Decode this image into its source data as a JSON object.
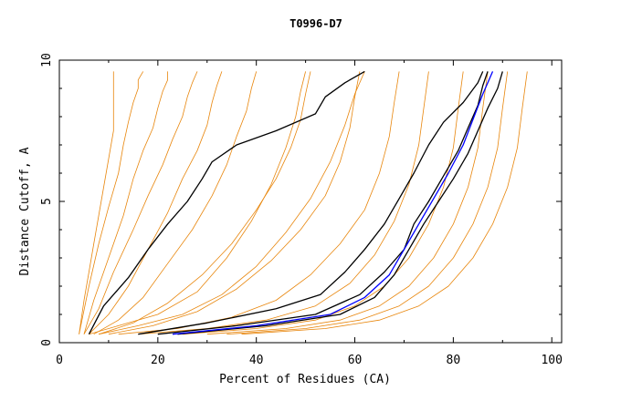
{
  "chart_data": {
    "type": "line",
    "title": "T0996-D7",
    "xlabel": "Percent of Residues (CA)",
    "ylabel": "Distance Cutoff, A",
    "xlim": [
      0,
      102
    ],
    "ylim": [
      0,
      10
    ],
    "x_ticks": [
      0,
      20,
      40,
      60,
      80,
      100
    ],
    "y_ticks": [
      0,
      5,
      10
    ],
    "grid": false,
    "legend": "none",
    "colors": {
      "background": "#ffffff",
      "orange": "#e8860c",
      "black": "#000000",
      "blue": "#0000ff"
    },
    "series": [
      {
        "color": "#e8860c",
        "x": [
          4,
          5,
          6,
          7,
          8,
          9,
          10,
          11,
          11,
          11,
          11
        ],
        "y": [
          0.3,
          1.5,
          2.5,
          3.5,
          4.5,
          5.5,
          6.5,
          7.5,
          8.5,
          9.2,
          9.6
        ]
      },
      {
        "color": "#e8860c",
        "x": [
          4,
          6,
          8,
          10,
          12,
          13,
          14,
          15,
          16,
          16,
          17
        ],
        "y": [
          0.3,
          2.0,
          3.5,
          4.8,
          6.0,
          7.0,
          7.8,
          8.5,
          9.0,
          9.3,
          9.6
        ]
      },
      {
        "color": "#e8860c",
        "x": [
          5,
          7,
          10,
          13,
          15,
          17,
          19,
          20,
          21,
          22,
          22
        ],
        "y": [
          0.3,
          1.5,
          3.0,
          4.5,
          5.8,
          6.8,
          7.6,
          8.3,
          8.9,
          9.3,
          9.6
        ]
      },
      {
        "color": "#e8860c",
        "x": [
          5,
          8,
          11,
          15,
          18,
          21,
          23,
          25,
          26,
          27,
          28
        ],
        "y": [
          0.3,
          1.2,
          2.5,
          4.0,
          5.2,
          6.3,
          7.2,
          8.0,
          8.7,
          9.2,
          9.6
        ]
      },
      {
        "color": "#e8860c",
        "x": [
          6,
          10,
          14,
          18,
          22,
          25,
          28,
          30,
          31,
          32,
          33
        ],
        "y": [
          0.3,
          1.0,
          2.0,
          3.3,
          4.6,
          5.8,
          6.8,
          7.7,
          8.5,
          9.1,
          9.6
        ]
      },
      {
        "color": "#e8860c",
        "x": [
          7,
          12,
          17,
          22,
          27,
          31,
          34,
          36,
          38,
          39,
          40
        ],
        "y": [
          0.3,
          0.8,
          1.6,
          2.8,
          4.0,
          5.2,
          6.3,
          7.3,
          8.2,
          9.0,
          9.6
        ]
      },
      {
        "color": "#e8860c",
        "x": [
          8,
          15,
          22,
          29,
          35,
          40,
          44,
          47,
          49,
          50,
          51
        ],
        "y": [
          0.3,
          0.7,
          1.4,
          2.4,
          3.5,
          4.7,
          5.8,
          6.9,
          7.9,
          8.8,
          9.6
        ]
      },
      {
        "color": "#e8860c",
        "x": [
          10,
          19,
          28,
          36,
          43,
          49,
          54,
          57,
          59,
          60,
          61
        ],
        "y": [
          0.3,
          0.6,
          1.1,
          1.9,
          2.9,
          4.0,
          5.2,
          6.4,
          7.6,
          8.7,
          9.6
        ]
      },
      {
        "color": "#e8860c",
        "x": [
          12,
          24,
          35,
          44,
          51,
          57,
          62,
          65,
          67,
          68,
          69
        ],
        "y": [
          0.3,
          0.5,
          0.9,
          1.5,
          2.4,
          3.5,
          4.7,
          6.0,
          7.3,
          8.5,
          9.6
        ]
      },
      {
        "color": "#e8860c",
        "x": [
          16,
          30,
          42,
          52,
          59,
          64,
          68,
          71,
          73,
          74,
          75
        ],
        "y": [
          0.3,
          0.5,
          0.8,
          1.3,
          2.1,
          3.1,
          4.3,
          5.6,
          7.0,
          8.3,
          9.6
        ]
      },
      {
        "color": "#e8860c",
        "x": [
          25,
          40,
          52,
          60,
          66,
          71,
          75,
          78,
          80,
          81,
          82
        ],
        "y": [
          0.3,
          0.5,
          0.8,
          1.3,
          2.0,
          3.0,
          4.2,
          5.5,
          6.9,
          8.3,
          9.6
        ]
      },
      {
        "color": "#e8860c",
        "x": [
          30,
          46,
          57,
          65,
          71,
          76,
          80,
          83,
          85,
          86,
          87
        ],
        "y": [
          0.3,
          0.5,
          0.8,
          1.3,
          2.0,
          3.0,
          4.2,
          5.5,
          6.9,
          8.3,
          9.6
        ]
      },
      {
        "color": "#e8860c",
        "x": [
          34,
          50,
          61,
          69,
          75,
          80,
          84,
          87,
          89,
          90,
          91
        ],
        "y": [
          0.3,
          0.5,
          0.8,
          1.3,
          2.0,
          3.0,
          4.2,
          5.5,
          6.9,
          8.3,
          9.6
        ]
      },
      {
        "color": "#e8860c",
        "x": [
          37,
          54,
          65,
          73,
          79,
          84,
          88,
          91,
          93,
          94,
          95
        ],
        "y": [
          0.3,
          0.5,
          0.8,
          1.3,
          2.0,
          3.0,
          4.2,
          5.5,
          6.9,
          8.3,
          9.6
        ]
      },
      {
        "color": "#e8860c",
        "x": [
          6,
          12,
          20,
          28,
          34,
          39,
          43,
          46,
          48,
          49,
          50
        ],
        "y": [
          0.3,
          0.6,
          1.0,
          1.8,
          3.0,
          4.3,
          5.6,
          6.9,
          8.0,
          8.9,
          9.6
        ]
      },
      {
        "color": "#e8860c",
        "x": [
          8,
          16,
          25,
          33,
          40,
          46,
          51,
          55,
          58,
          60,
          62
        ],
        "y": [
          0.3,
          0.6,
          1.0,
          1.7,
          2.7,
          3.9,
          5.1,
          6.4,
          7.7,
          8.8,
          9.6
        ]
      },
      {
        "color": "#000000",
        "x": [
          6,
          9,
          14,
          18,
          22,
          26,
          29,
          31,
          36,
          44,
          52,
          54,
          58,
          62
        ],
        "y": [
          0.3,
          1.3,
          2.3,
          3.3,
          4.2,
          5.0,
          5.8,
          6.4,
          7.0,
          7.5,
          8.1,
          8.7,
          9.2,
          9.6
        ]
      },
      {
        "color": "#000000",
        "x": [
          16,
          30,
          44,
          53,
          58,
          62,
          66,
          69,
          72,
          75,
          78,
          82,
          85,
          86
        ],
        "y": [
          0.3,
          0.7,
          1.2,
          1.7,
          2.5,
          3.3,
          4.2,
          5.1,
          6.0,
          7.0,
          7.8,
          8.5,
          9.2,
          9.6
        ]
      },
      {
        "color": "#000000",
        "x": [
          20,
          36,
          52,
          61,
          66,
          70,
          72,
          75,
          78,
          81,
          83,
          85,
          86,
          87
        ],
        "y": [
          0.3,
          0.6,
          1.0,
          1.7,
          2.5,
          3.3,
          4.2,
          5.0,
          5.9,
          6.8,
          7.6,
          8.4,
          9.1,
          9.6
        ]
      },
      {
        "color": "#000000",
        "x": [
          24,
          42,
          57,
          64,
          68,
          71,
          74,
          77,
          80,
          83,
          85,
          87,
          89,
          90
        ],
        "y": [
          0.3,
          0.6,
          1.0,
          1.6,
          2.4,
          3.3,
          4.2,
          5.0,
          5.8,
          6.7,
          7.5,
          8.3,
          9.0,
          9.6
        ]
      },
      {
        "color": "#0000ff",
        "x": [
          23,
          40,
          55,
          62,
          67,
          70,
          73,
          76,
          79,
          82,
          84,
          86,
          88
        ],
        "y": [
          0.3,
          0.6,
          1.0,
          1.6,
          2.4,
          3.3,
          4.2,
          5.1,
          6.0,
          7.0,
          7.9,
          8.8,
          9.6
        ]
      }
    ]
  }
}
